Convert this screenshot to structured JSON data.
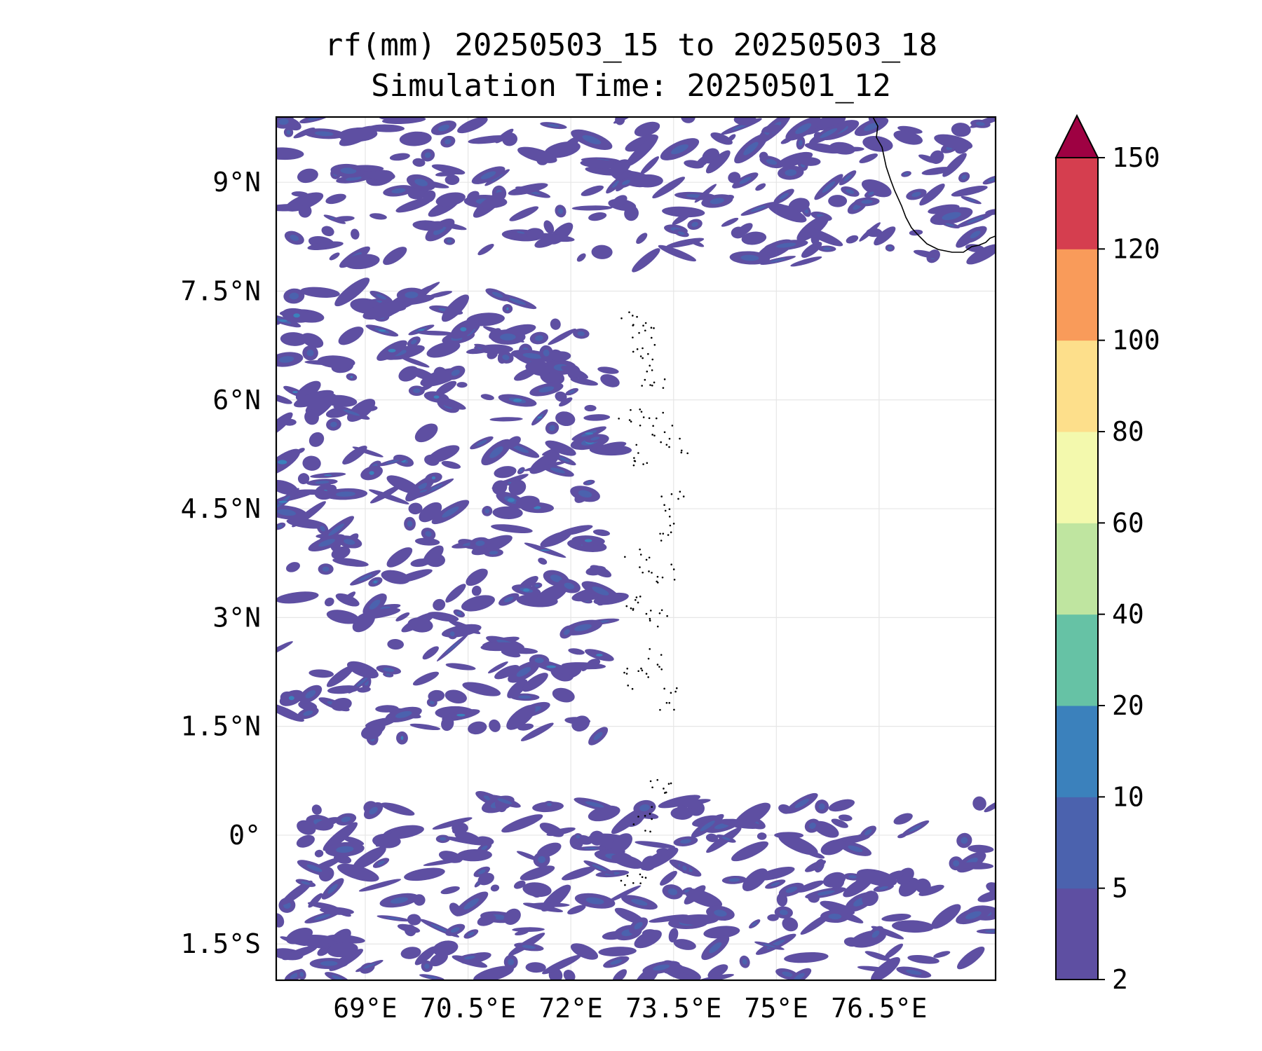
{
  "title": {
    "line1": "rf(mm) 20250503_15 to 20250503_18",
    "line2": "Simulation Time: 20250501_12"
  },
  "chart_data": {
    "type": "heatmap",
    "subtype": "filled-contour precipitation map",
    "variable": "rf(mm)",
    "period": "20250503_15 to 20250503_18",
    "simulation_time": "20250501_12",
    "lon_range": [
      67.7,
      78.2
    ],
    "lat_range": [
      -2.0,
      9.9
    ],
    "x_ticks": [
      {
        "value": 69.0,
        "label": "69°E"
      },
      {
        "value": 70.5,
        "label": "70.5°E"
      },
      {
        "value": 72.0,
        "label": "72°E"
      },
      {
        "value": 73.5,
        "label": "73.5°E"
      },
      {
        "value": 75.0,
        "label": "75°E"
      },
      {
        "value": 76.5,
        "label": "76.5°E"
      }
    ],
    "y_ticks": [
      {
        "value": 9.0,
        "label": "9°N"
      },
      {
        "value": 7.5,
        "label": "7.5°N"
      },
      {
        "value": 6.0,
        "label": "6°N"
      },
      {
        "value": 4.5,
        "label": "4.5°N"
      },
      {
        "value": 3.0,
        "label": "3°N"
      },
      {
        "value": 1.5,
        "label": "1.5°N"
      },
      {
        "value": 0.0,
        "label": "0°"
      },
      {
        "value": -1.5,
        "label": "1.5°S"
      }
    ],
    "grid": true,
    "colorbar": {
      "position": "right",
      "extend": "max",
      "levels": [
        2,
        5,
        10,
        20,
        40,
        60,
        80,
        100,
        120,
        150
      ],
      "level_labels": [
        "2",
        "5",
        "10",
        "20",
        "40",
        "60",
        "80",
        "100",
        "120",
        "150"
      ],
      "colors": [
        "#5e4fa2",
        "#4b62ae",
        "#3b81bc",
        "#66c2a5",
        "#bfe5a0",
        "#f3f9ad",
        "#fddf8b",
        "#f99b5a",
        "#d53e4f"
      ],
      "extend_color": "#9e0142"
    },
    "rain_bands": [
      {
        "region": "northern band",
        "lon": [
          67.7,
          78.2
        ],
        "lat": [
          7.9,
          9.9
        ],
        "dominant_class_mm": "2-10"
      },
      {
        "region": "western mid band",
        "lon": [
          67.7,
          72.6
        ],
        "lat": [
          1.3,
          7.5
        ],
        "dominant_class_mm": "2-20"
      },
      {
        "region": "southern band",
        "lon": [
          67.7,
          78.2
        ],
        "lat": [
          -2.0,
          0.5
        ],
        "dominant_class_mm": "2-10"
      }
    ],
    "max_class_present_mm": "10-20"
  }
}
